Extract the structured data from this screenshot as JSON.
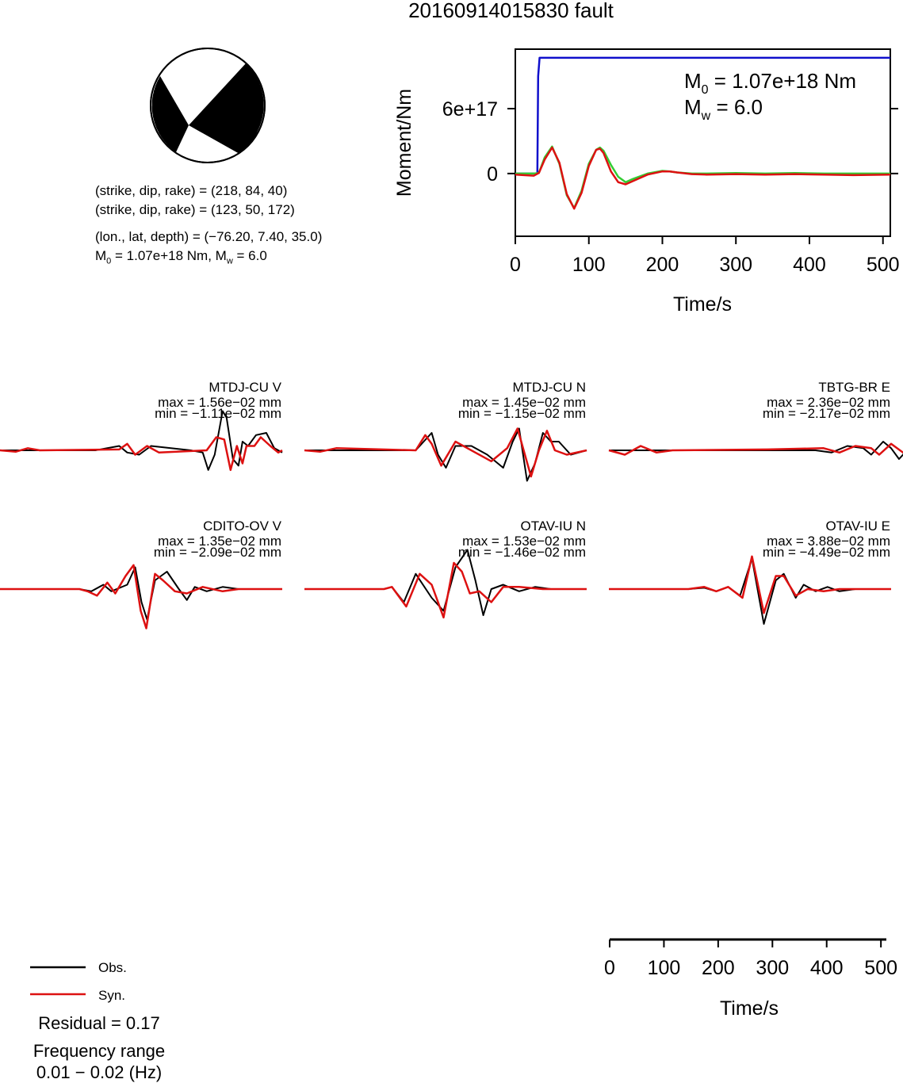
{
  "title": "20160914015830 fault",
  "params": {
    "plane1": "(strike, dip, rake) = (218, 84, 40)",
    "plane2": "(strike, dip, rake) = (123, 50, 172)",
    "location": "(lon., lat, depth) = (−76.20, 7.40, 35.0)",
    "m0_prefix": "M",
    "m0_sub": "0",
    "m0_rest": " = 1.07e+18 Nm, M",
    "mw_sub": "w",
    "mw_rest": " = 6.0"
  },
  "stf_panel": {
    "ylabel": "Moment/Nm",
    "xlabel": "Time/s",
    "yticks": [
      "0",
      "6e+17"
    ],
    "xticks": [
      "0",
      "100",
      "200",
      "300",
      "400",
      "500"
    ],
    "annot_m0_main": "M",
    "annot_m0_sub": "0",
    "annot_m0_rest": " = 1.07e+18 Nm",
    "annot_mw_main": "M",
    "annot_mw_sub": "w",
    "annot_mw_rest": " = 6.0"
  },
  "waveform_axis": {
    "xlabel": "Time/s",
    "xticks": [
      "0",
      "100",
      "200",
      "300",
      "400",
      "500"
    ]
  },
  "legend": {
    "obs": "Obs.",
    "syn": "Syn.",
    "residual": "Residual = 0.17",
    "freq_label": "Frequency range",
    "freq_value": "0.01 − 0.02 (Hz)"
  },
  "colors": {
    "obs": "#000000",
    "syn": "#dd1111",
    "cumulative_moment": "#1010cc",
    "stf_green": "#33cc33",
    "stf_red": "#dd1111"
  },
  "chart_data": [
    {
      "type": "line",
      "xlabel": "Time/s",
      "ylabel": "Moment/Nm",
      "xlim": [
        0,
        510
      ],
      "ylim": [
        -5.8e+17,
        1.15e+18
      ],
      "yticks": [
        0,
        6e+17
      ],
      "series": [
        {
          "x": [
            0,
            30,
            31,
            33,
            510
          ],
          "y": [
            0,
            0,
            9e+17,
            1.07e+18,
            1.07e+18
          ]
        },
        {
          "x": [
            0,
            25,
            32,
            40,
            50,
            60,
            70,
            80,
            90,
            100,
            110,
            115,
            120,
            130,
            140,
            150,
            160,
            180,
            200,
            210,
            220,
            240,
            260,
            300,
            340,
            380,
            420,
            460,
            510
          ],
          "y": [
            0,
            0,
            5000000000000000.0,
            1.5e+17,
            2.5e+17,
            9e+16,
            -2e+17,
            -3.2e+17,
            -1.6e+17,
            9e+16,
            2.2e+17,
            2.4e+17,
            2.1e+17,
            8e+16,
            -3e+16,
            -8e+16,
            -5e+16,
            0,
            2.5e+16,
            2e+16,
            1e+16,
            0,
            0,
            5000000000000000.0,
            0,
            5000000000000000.0,
            0,
            0,
            0
          ]
        },
        {
          "x": [
            0,
            25,
            32,
            40,
            50,
            60,
            70,
            80,
            90,
            100,
            110,
            115,
            120,
            130,
            140,
            150,
            160,
            180,
            200,
            210,
            220,
            240,
            260,
            300,
            340,
            380,
            420,
            460,
            510
          ],
          "y": [
            -1e+16,
            -2e+16,
            5000000000000000.0,
            1.3e+17,
            2.4e+17,
            1e+17,
            -1.9e+17,
            -3.25e+17,
            -1.8e+17,
            7e+16,
            2.2e+17,
            2.3e+17,
            1.9e+17,
            2e+16,
            -8e+16,
            -1e+17,
            -7e+16,
            -1e+16,
            2e+16,
            2e+16,
            1e+16,
            -5000000000000000.0,
            -1e+16,
            -5000000000000000.0,
            -1e+16,
            -5000000000000000.0,
            -1e+16,
            -1.5e+16,
            -1e+16
          ]
        }
      ]
    },
    {
      "type": "line",
      "xlabel": "Time/s",
      "xlim": [
        0,
        510
      ],
      "panels": [
        {
          "name": "MTDJ-CU V",
          "max": "max = 1.56e−02 mm",
          "min": "min = −1.11e−02 mm",
          "obs": [
            [
              0,
              0
            ],
            [
              120,
              0
            ],
            [
              150,
              0.1
            ],
            [
              160,
              -0.05
            ],
            [
              175,
              -0.1
            ],
            [
              190,
              0.1
            ],
            [
              240,
              0
            ],
            [
              255,
              -0.05
            ],
            [
              262,
              -0.45
            ],
            [
              270,
              -0.1
            ],
            [
              280,
              0.9
            ],
            [
              285,
              0.75
            ],
            [
              293,
              -0.2
            ],
            [
              300,
              -0.35
            ],
            [
              305,
              0.2
            ],
            [
              312,
              0.1
            ],
            [
              322,
              0.35
            ],
            [
              335,
              0.4
            ],
            [
              345,
              0.05
            ],
            [
              355,
              -0.05
            ]
          ],
          "syn": [
            [
              0,
              0
            ],
            [
              20,
              -0.03
            ],
            [
              35,
              0.05
            ],
            [
              50,
              0
            ],
            [
              150,
              0.02
            ],
            [
              160,
              0.15
            ],
            [
              170,
              -0.1
            ],
            [
              185,
              0.1
            ],
            [
              200,
              -0.05
            ],
            [
              260,
              0
            ],
            [
              272,
              0.3
            ],
            [
              282,
              0.25
            ],
            [
              290,
              -0.45
            ],
            [
              298,
              0.1
            ],
            [
              305,
              -0.3
            ],
            [
              310,
              0.1
            ],
            [
              320,
              0.1
            ],
            [
              328,
              0.3
            ],
            [
              340,
              0.1
            ],
            [
              350,
              -0.05
            ],
            [
              355,
              0
            ]
          ]
        },
        {
          "name": "MTDJ-CU N",
          "max": "max = 1.45e−02 mm",
          "min": "min = −1.15e−02 mm",
          "obs": [
            [
              0,
              0
            ],
            [
              140,
              0
            ],
            [
              150,
              0.2
            ],
            [
              160,
              0.4
            ],
            [
              168,
              -0.1
            ],
            [
              178,
              -0.4
            ],
            [
              190,
              0.1
            ],
            [
              210,
              0.1
            ],
            [
              230,
              -0.1
            ],
            [
              250,
              -0.4
            ],
            [
              262,
              0.2
            ],
            [
              270,
              0.5
            ],
            [
              280,
              -0.7
            ],
            [
              290,
              -0.3
            ],
            [
              300,
              0.4
            ],
            [
              310,
              0.2
            ],
            [
              320,
              0.2
            ],
            [
              335,
              -0.1
            ],
            [
              355,
              0
            ]
          ],
          "syn": [
            [
              0,
              0
            ],
            [
              20,
              -0.03
            ],
            [
              40,
              0.05
            ],
            [
              140,
              0
            ],
            [
              152,
              0.35
            ],
            [
              160,
              0.15
            ],
            [
              172,
              -0.35
            ],
            [
              190,
              0.2
            ],
            [
              215,
              -0.05
            ],
            [
              235,
              -0.25
            ],
            [
              255,
              0.05
            ],
            [
              268,
              0.5
            ],
            [
              285,
              -0.6
            ],
            [
              295,
              0.0
            ],
            [
              305,
              0.45
            ],
            [
              315,
              0.0
            ],
            [
              330,
              -0.1
            ],
            [
              355,
              0
            ]
          ]
        },
        {
          "name": "TBTG-BR E",
          "max": "max = 2.36e−02 mm",
          "min": "min = −2.17e−02 mm",
          "obs": [
            [
              0,
              0
            ],
            [
              200,
              0
            ],
            [
              260,
              0
            ],
            [
              280,
              -0.05
            ],
            [
              300,
              0.1
            ],
            [
              320,
              0.05
            ],
            [
              330,
              -0.1
            ],
            [
              345,
              0.2
            ],
            [
              355,
              0.05
            ],
            [
              365,
              -0.2
            ],
            [
              380,
              0.1
            ],
            [
              395,
              0.35
            ],
            [
              405,
              -0.4
            ],
            [
              415,
              0.9
            ],
            [
              425,
              -0.8
            ],
            [
              432,
              -0.3
            ],
            [
              440,
              0.3
            ],
            [
              450,
              0.15
            ],
            [
              455,
              0
            ]
          ],
          "syn": [
            [
              0,
              0
            ],
            [
              20,
              -0.1
            ],
            [
              40,
              0.1
            ],
            [
              60,
              -0.05
            ],
            [
              80,
              0
            ],
            [
              200,
              0.02
            ],
            [
              270,
              0.05
            ],
            [
              290,
              -0.05
            ],
            [
              310,
              0.1
            ],
            [
              330,
              0.05
            ],
            [
              340,
              -0.1
            ],
            [
              355,
              0.15
            ],
            [
              370,
              -0.05
            ],
            [
              385,
              0.05
            ],
            [
              395,
              0.3
            ],
            [
              402,
              -0.35
            ],
            [
              412,
              0.8
            ],
            [
              422,
              -0.6
            ],
            [
              432,
              0.2
            ],
            [
              445,
              0.2
            ],
            [
              455,
              0.05
            ]
          ]
        },
        {
          "name": "CDITO-OV V",
          "max": "max = 1.35e−02 mm",
          "min": "min = −2.09e−02 mm",
          "obs": [
            [
              0,
              0
            ],
            [
              100,
              0
            ],
            [
              115,
              -0.05
            ],
            [
              130,
              0.1
            ],
            [
              140,
              -0.05
            ],
            [
              160,
              0.1
            ],
            [
              170,
              0.5
            ],
            [
              178,
              -0.3
            ],
            [
              185,
              -0.7
            ],
            [
              195,
              0.2
            ],
            [
              210,
              0.4
            ],
            [
              225,
              0.0
            ],
            [
              235,
              -0.25
            ],
            [
              245,
              0.05
            ],
            [
              260,
              -0.05
            ],
            [
              280,
              0.05
            ],
            [
              300,
              0
            ],
            [
              355,
              0
            ]
          ],
          "syn": [
            [
              0,
              0
            ],
            [
              100,
              0
            ],
            [
              110,
              -0.05
            ],
            [
              122,
              -0.15
            ],
            [
              135,
              0.15
            ],
            [
              145,
              -0.1
            ],
            [
              158,
              0.3
            ],
            [
              168,
              0.55
            ],
            [
              177,
              -0.5
            ],
            [
              184,
              -0.9
            ],
            [
              195,
              0.35
            ],
            [
              205,
              0.2
            ],
            [
              220,
              -0.05
            ],
            [
              235,
              -0.1
            ],
            [
              255,
              0.05
            ],
            [
              280,
              -0.05
            ],
            [
              300,
              0
            ],
            [
              355,
              0
            ]
          ]
        },
        {
          "name": "OTAV-IU N",
          "max": "max = 1.53e−02 mm",
          "min": "min = −1.46e−02 mm",
          "obs": [
            [
              0,
              0
            ],
            [
              100,
              0
            ],
            [
              110,
              0.05
            ],
            [
              125,
              -0.3
            ],
            [
              140,
              0.35
            ],
            [
              160,
              -0.2
            ],
            [
              175,
              -0.5
            ],
            [
              190,
              0.5
            ],
            [
              205,
              0.9
            ],
            [
              215,
              0.2
            ],
            [
              225,
              -0.6
            ],
            [
              235,
              0.0
            ],
            [
              250,
              0.1
            ],
            [
              270,
              -0.05
            ],
            [
              290,
              0.05
            ],
            [
              310,
              0
            ],
            [
              355,
              0
            ]
          ],
          "syn": [
            [
              0,
              0
            ],
            [
              100,
              0
            ],
            [
              110,
              0.05
            ],
            [
              128,
              -0.4
            ],
            [
              145,
              0.35
            ],
            [
              160,
              0.1
            ],
            [
              175,
              -0.65
            ],
            [
              188,
              0.6
            ],
            [
              198,
              0.4
            ],
            [
              208,
              -0.1
            ],
            [
              220,
              -0.05
            ],
            [
              235,
              -0.3
            ],
            [
              250,
              0.05
            ],
            [
              270,
              0.05
            ],
            [
              300,
              0
            ],
            [
              355,
              0
            ]
          ]
        },
        {
          "name": "OTAV-IU E",
          "max": "max = 3.88e−02 mm",
          "min": "min = −4.49e−02 mm",
          "obs": [
            [
              0,
              0
            ],
            [
              100,
              0
            ],
            [
              120,
              0.03
            ],
            [
              135,
              -0.05
            ],
            [
              150,
              0.05
            ],
            [
              165,
              -0.15
            ],
            [
              180,
              0.7
            ],
            [
              195,
              -0.8
            ],
            [
              210,
              0.2
            ],
            [
              220,
              0.35
            ],
            [
              235,
              -0.2
            ],
            [
              245,
              0.1
            ],
            [
              260,
              -0.05
            ],
            [
              275,
              0.05
            ],
            [
              290,
              -0.05
            ],
            [
              310,
              0
            ],
            [
              355,
              0
            ]
          ],
          "syn": [
            [
              0,
              0
            ],
            [
              100,
              0
            ],
            [
              120,
              0.05
            ],
            [
              135,
              -0.05
            ],
            [
              150,
              0.05
            ],
            [
              168,
              -0.2
            ],
            [
              180,
              0.75
            ],
            [
              195,
              -0.55
            ],
            [
              210,
              0.3
            ],
            [
              220,
              0.3
            ],
            [
              235,
              -0.15
            ],
            [
              250,
              0.0
            ],
            [
              270,
              -0.05
            ],
            [
              290,
              0.0
            ],
            [
              310,
              0
            ],
            [
              355,
              0
            ]
          ]
        }
      ]
    }
  ]
}
